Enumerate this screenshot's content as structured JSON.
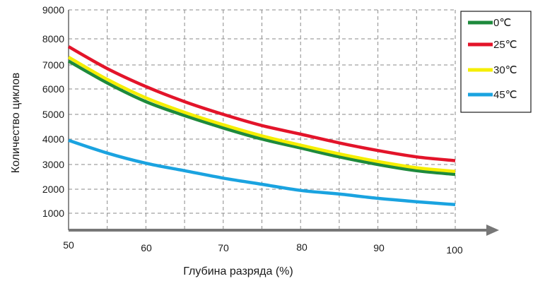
{
  "chart_data": {
    "type": "line",
    "title": "",
    "xlabel": "Глубина разряда  (%)",
    "ylabel": "Количество циклов",
    "x_ticks": [
      "50",
      "60",
      "70",
      "80",
      "90",
      "100"
    ],
    "y_ticks": [
      "1000",
      "2000",
      "3000",
      "4000",
      "5000",
      "6000",
      "7000",
      "8000",
      "9000"
    ],
    "xlim": [
      50,
      100
    ],
    "ylim": [
      0,
      9000
    ],
    "grid": true,
    "legend_position": "top-right",
    "x": [
      50,
      55,
      60,
      65,
      70,
      75,
      80,
      85,
      90,
      95,
      100
    ],
    "series": [
      {
        "name": "0℃",
        "color": "#1e8a3c",
        "values": [
          7150,
          6250,
          5500,
          4950,
          4450,
          4000,
          3650,
          3300,
          3000,
          2750,
          2600
        ]
      },
      {
        "name": "25℃",
        "color": "#e3142a",
        "values": [
          7700,
          6850,
          6100,
          5500,
          5000,
          4550,
          4200,
          3850,
          3550,
          3300,
          3150
        ]
      },
      {
        "name": "30℃",
        "color": "#f5ee00",
        "values": [
          7300,
          6400,
          5650,
          5080,
          4580,
          4130,
          3760,
          3420,
          3120,
          2870,
          2720
        ]
      },
      {
        "name": "45℃",
        "color": "#1aa3e0",
        "values": [
          3950,
          3450,
          3050,
          2750,
          2450,
          2200,
          1950,
          1800,
          1620,
          1480,
          1360
        ]
      }
    ]
  }
}
